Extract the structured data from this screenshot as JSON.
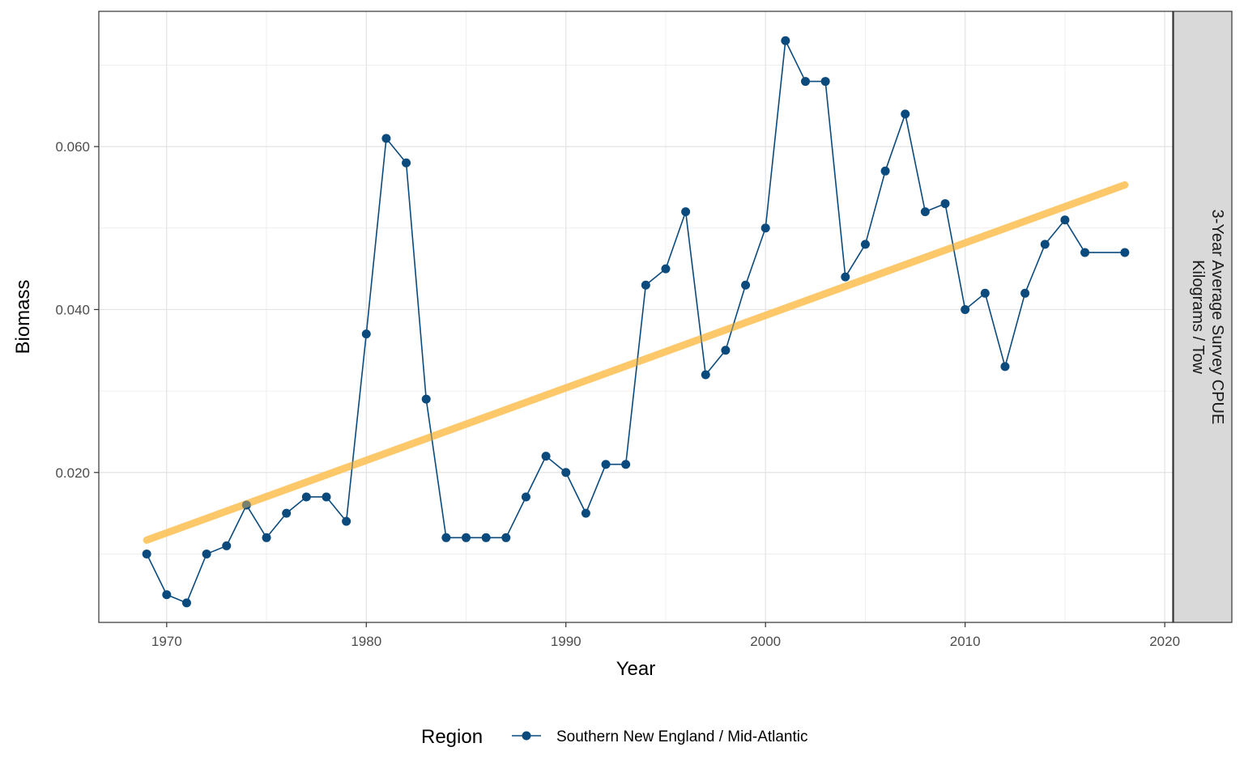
{
  "chart_data": {
    "type": "line",
    "title": "",
    "xlabel": "Year",
    "ylabel": "Biomass",
    "strip_label_lines": [
      "3-Year Average Survey CPUE",
      "Kilograms / Tow"
    ],
    "legend": {
      "title": "Region",
      "position": "bottom"
    },
    "grid": true,
    "xlim": [
      1966.6,
      2020.4
    ],
    "ylim": [
      0.0016,
      0.0766
    ],
    "x_ticks": [
      1970,
      1980,
      1990,
      2000,
      2010,
      2020
    ],
    "y_ticks": [
      0.02,
      0.04,
      0.06
    ],
    "y_tick_labels": [
      "0.020",
      "0.040",
      "0.060"
    ],
    "series": [
      {
        "name": "Southern New England / Mid-Atlantic",
        "color": "#0a4a7d",
        "x": [
          1969,
          1970,
          1971,
          1972,
          1973,
          1974,
          1975,
          1976,
          1977,
          1978,
          1979,
          1980,
          1981,
          1982,
          1983,
          1984,
          1985,
          1986,
          1987,
          1988,
          1989,
          1990,
          1991,
          1992,
          1993,
          1994,
          1995,
          1996,
          1997,
          1998,
          1999,
          2000,
          2001,
          2002,
          2003,
          2004,
          2005,
          2006,
          2007,
          2008,
          2009,
          2010,
          2011,
          2012,
          2013,
          2014,
          2015,
          2016,
          2018
        ],
        "y": [
          0.01,
          0.005,
          0.004,
          0.01,
          0.011,
          0.016,
          0.012,
          0.015,
          0.017,
          0.017,
          0.014,
          0.037,
          0.061,
          0.058,
          0.029,
          0.012,
          0.012,
          0.012,
          0.012,
          0.017,
          0.022,
          0.02,
          0.015,
          0.021,
          0.021,
          0.043,
          0.045,
          0.052,
          0.032,
          0.035,
          0.043,
          0.05,
          0.073,
          0.068,
          0.068,
          0.044,
          0.048,
          0.057,
          0.064,
          0.052,
          0.053,
          0.04,
          0.042,
          0.033,
          0.042,
          0.048,
          0.051,
          0.047,
          0.047
        ]
      }
    ],
    "trend": {
      "color": "#fdc45c",
      "x": [
        1969,
        2018
      ],
      "y": [
        0.0117,
        0.0553
      ]
    }
  }
}
